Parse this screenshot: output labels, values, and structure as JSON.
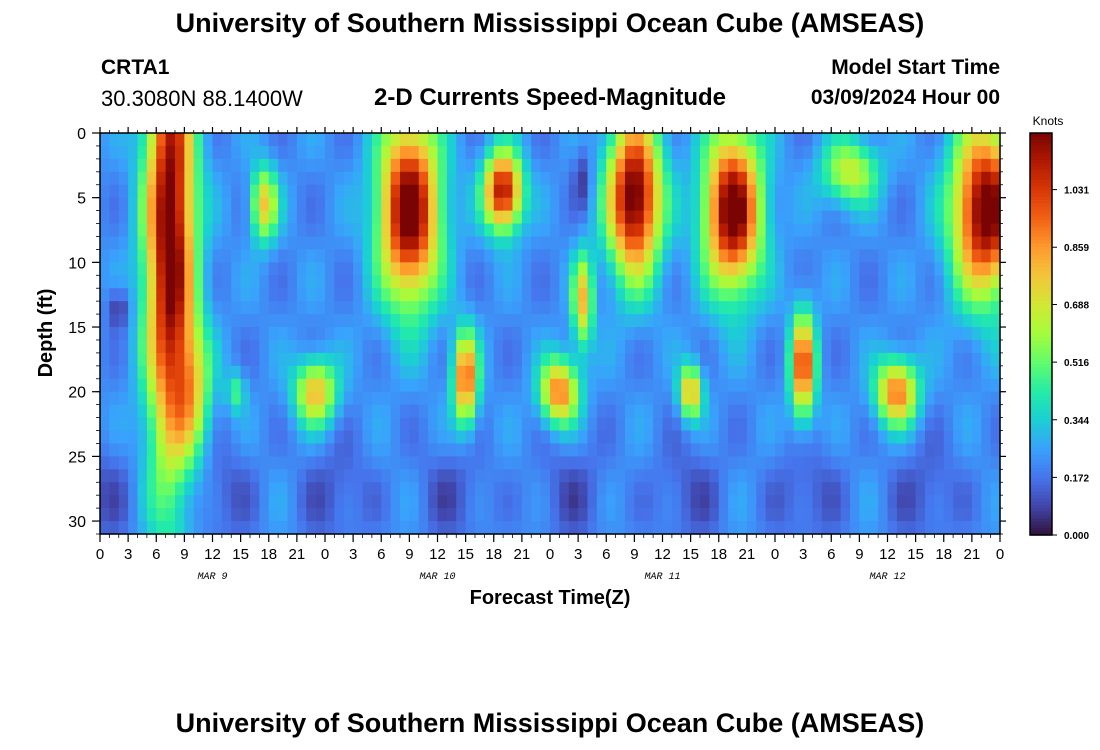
{
  "header": {
    "title": "University of Southern Mississippi Ocean Cube (AMSEAS)",
    "station_id": "CRTA1",
    "station_location": "30.3080N  88.1400W",
    "subtitle": "2-D Currents Speed-Magnitude",
    "model_start_label": "Model Start Time",
    "model_start_value": "03/09/2024 Hour 00"
  },
  "footer": {
    "title": "University of Southern Mississippi Ocean Cube (AMSEAS)"
  },
  "chart_data": {
    "type": "heatmap",
    "title": "2-D Currents Speed-Magnitude",
    "xlabel": "Forecast Time(Z)",
    "ylabel": "Depth (ft)",
    "x_range_hours": [
      0,
      96
    ],
    "y_range_ft": [
      0,
      31
    ],
    "x_tick_labels": [
      "0",
      "3",
      "6",
      "9",
      "12",
      "15",
      "18",
      "21",
      "0",
      "3",
      "6",
      "9",
      "12",
      "15",
      "18",
      "21",
      "0",
      "3",
      "6",
      "9",
      "12",
      "15",
      "18",
      "21",
      "0",
      "3",
      "6",
      "9",
      "12",
      "15",
      "18",
      "21",
      "0"
    ],
    "date_labels": [
      "MAR 9",
      "MAR 10",
      "MAR 11",
      "MAR 12"
    ],
    "y_ticks": [
      0,
      5,
      10,
      15,
      20,
      25,
      30
    ],
    "colorbar_title": "Knots",
    "colorbar_ticks": [
      "1.031",
      "0.859",
      "0.688",
      "0.516",
      "0.344",
      "0.172",
      "0.000"
    ],
    "value_range": [
      0,
      1.2
    ],
    "colorscale": [
      "#30123b",
      "#4145ab",
      "#4675ed",
      "#39a2fc",
      "#1bcfd4",
      "#24eca6",
      "#61fc6c",
      "#a4fc3b",
      "#d1e834",
      "#f3c63a",
      "#fe9b2d",
      "#f36315",
      "#d93806",
      "#b11901",
      "#7a0403"
    ],
    "hotspots": [
      {
        "h": 7.5,
        "d": 8,
        "sh": 2.6,
        "sd": 18,
        "v": 1.05
      },
      {
        "h": 2,
        "d": 13.5,
        "sh": 1.2,
        "sd": 1.6,
        "v": -0.18
      },
      {
        "h": 17.5,
        "d": 5.5,
        "sh": 1.4,
        "sd": 2.8,
        "v": 0.55
      },
      {
        "h": 23,
        "d": 20,
        "sh": 2.2,
        "sd": 2.5,
        "v": 0.58
      },
      {
        "h": 14.5,
        "d": 20,
        "sh": 1.0,
        "sd": 1.6,
        "v": 0.25
      },
      {
        "h": 33,
        "d": 6,
        "sh": 3.2,
        "sd": 7,
        "v": 1.05
      },
      {
        "h": 39,
        "d": 19,
        "sh": 1.3,
        "sd": 3.5,
        "v": 0.75
      },
      {
        "h": 43,
        "d": 4.5,
        "sh": 2.0,
        "sd": 3,
        "v": 0.95
      },
      {
        "h": 49,
        "d": 20,
        "sh": 2.0,
        "sd": 2.5,
        "v": 0.7
      },
      {
        "h": 51.5,
        "d": 13,
        "sh": 1.1,
        "sd": 3.5,
        "v": 0.55
      },
      {
        "h": 57,
        "d": 5,
        "sh": 2.8,
        "sd": 6,
        "v": 1.05
      },
      {
        "h": 63,
        "d": 20,
        "sh": 1.2,
        "sd": 2.0,
        "v": 0.62
      },
      {
        "h": 67.5,
        "d": 6,
        "sh": 3.0,
        "sd": 6,
        "v": 1.05
      },
      {
        "h": 75,
        "d": 18,
        "sh": 1.3,
        "sd": 4.0,
        "v": 0.78
      },
      {
        "h": 85,
        "d": 20,
        "sh": 2.2,
        "sd": 2.5,
        "v": 0.7
      },
      {
        "h": 94.5,
        "d": 6,
        "sh": 3.5,
        "sd": 6.5,
        "v": 1.05
      },
      {
        "h": 80,
        "d": 3,
        "sh": 3.0,
        "sd": 2.5,
        "v": 0.45
      },
      {
        "h": 51.5,
        "d": 3.5,
        "sh": 1.0,
        "sd": 2.5,
        "v": -0.15
      },
      {
        "h": 10,
        "d": 20,
        "sh": 2.0,
        "sd": 5,
        "v": 0.35
      }
    ]
  }
}
